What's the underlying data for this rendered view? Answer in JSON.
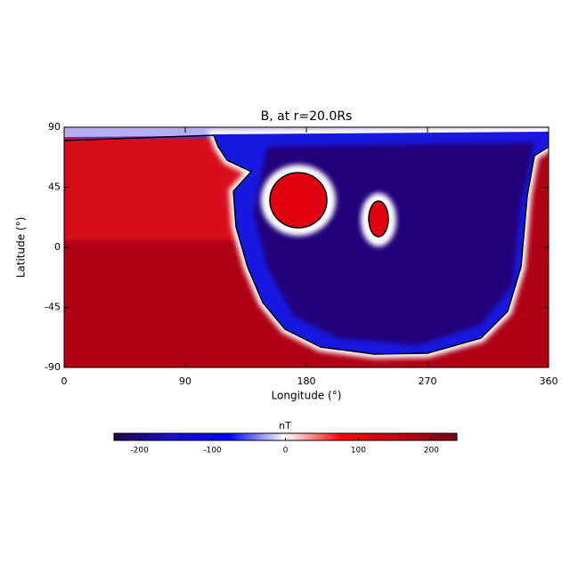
{
  "chart_data": {
    "type": "heatmap",
    "title": "B, at r=20.0Rs",
    "xlabel": "Longitude (°)",
    "ylabel": "Latitude (°)",
    "xlim": [
      0,
      360
    ],
    "xticks": [
      0,
      90,
      180,
      270,
      360
    ],
    "ylim": [
      -90,
      90
    ],
    "yticks": [
      -90,
      -45,
      0,
      45,
      90
    ],
    "colorbar": {
      "label": "nT",
      "lim": [
        -235,
        235
      ],
      "ticks": [
        -200,
        -100,
        0,
        100,
        200
      ],
      "colors": [
        "#22004a",
        "#1a10c8",
        "#0000ff",
        "#ffffff",
        "#ff0000",
        "#c00010",
        "#780018"
      ]
    }
  }
}
